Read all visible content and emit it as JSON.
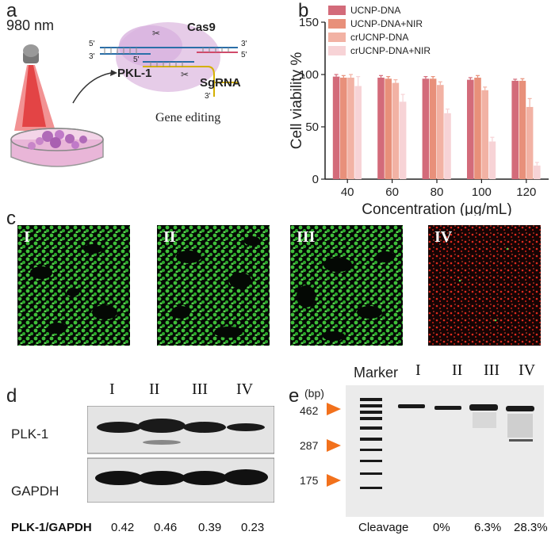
{
  "panel_labels": {
    "a": "a",
    "b": "b",
    "c": "c",
    "d": "d",
    "e": "e"
  },
  "panel_a": {
    "wavelength": "980 nm",
    "protein": "Cas9",
    "target": "PKL-1",
    "guide": "SgRNA",
    "caption": "Gene editing",
    "strand_ends": {
      "top_left": "5'",
      "bottom_left": "3'",
      "inner_left": "5'",
      "top_right": "3'",
      "bottom_right": "5'",
      "sg_end": "3'"
    }
  },
  "chart_data": {
    "type": "bar",
    "xlabel": "Concentration (μg/mL)",
    "ylabel": "Cell viability %",
    "ylim": [
      0,
      150
    ],
    "yticks": [
      0,
      50,
      100,
      150
    ],
    "categories": [
      "40",
      "60",
      "80",
      "100",
      "120"
    ],
    "legend_position": "top-right",
    "series": [
      {
        "name": "UCNP-DNA",
        "color": "#d36b7a",
        "values": [
          98,
          97,
          96,
          95,
          94
        ],
        "errors": [
          2,
          2,
          2,
          2,
          1.5
        ]
      },
      {
        "name": "UCNP-DNA+NIR",
        "color": "#e8907a",
        "values": [
          97,
          96,
          96,
          97,
          94
        ],
        "errors": [
          2,
          2,
          2,
          2,
          2
        ]
      },
      {
        "name": "crUCNP-DNA",
        "color": "#f2b2a4",
        "values": [
          97,
          92,
          90,
          85,
          69
        ],
        "errors": [
          3,
          3,
          3,
          3,
          8
        ]
      },
      {
        "name": "crUCNP-DNA+NIR",
        "color": "#f7d3d6",
        "values": [
          89,
          74,
          63,
          36,
          13
        ],
        "errors": [
          9,
          7,
          4,
          4,
          3
        ]
      }
    ]
  },
  "panel_c": {
    "labels": [
      "I",
      "II",
      "III",
      "IV"
    ]
  },
  "panel_d": {
    "lanes": [
      "I",
      "II",
      "III",
      "IV"
    ],
    "row_labels": [
      "PLK-1",
      "GAPDH"
    ],
    "ratio_label": "PLK-1/GAPDH",
    "ratios": [
      "0.42",
      "0.46",
      "0.39",
      "0.23"
    ]
  },
  "panel_e": {
    "marker_label": "Marker",
    "lanes": [
      "I",
      "II",
      "III",
      "IV"
    ],
    "unit": "(bp)",
    "sizes": [
      "462",
      "287",
      "175"
    ],
    "cleavage_label": "Cleavage",
    "cleavage": [
      "0%",
      "6.3%",
      "28.3%"
    ],
    "arrow_color": "#f2711c"
  }
}
